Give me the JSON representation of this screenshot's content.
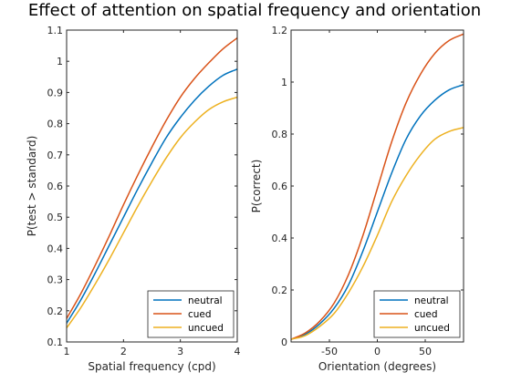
{
  "figure_title": "Effect of attention on spatial frequency and orientation",
  "colors": {
    "neutral": "#0072BD",
    "cued": "#D95319",
    "uncued": "#EDB120"
  },
  "chart_data": [
    {
      "type": "line",
      "xlabel": "Spatial frequency (cpd)",
      "ylabel": "P(test > standard)",
      "xlim": [
        1,
        4
      ],
      "ylim": [
        0.1,
        1.1
      ],
      "xticks": [
        1,
        2,
        3,
        4
      ],
      "yticks": [
        0.1,
        0.2,
        0.3,
        0.4,
        0.5,
        0.6,
        0.7,
        0.8,
        0.9,
        1,
        1.1
      ],
      "legend_position": "bottom-right",
      "grid": false,
      "x": [
        1.0,
        1.25,
        1.5,
        1.75,
        2.0,
        2.25,
        2.5,
        2.75,
        3.0,
        3.25,
        3.5,
        3.75,
        4.0
      ],
      "series": [
        {
          "name": "neutral",
          "values": [
            0.16,
            0.235,
            0.32,
            0.41,
            0.5,
            0.59,
            0.675,
            0.755,
            0.82,
            0.875,
            0.92,
            0.955,
            0.975
          ]
        },
        {
          "name": "cued",
          "values": [
            0.175,
            0.255,
            0.345,
            0.44,
            0.54,
            0.635,
            0.725,
            0.81,
            0.885,
            0.945,
            0.995,
            1.04,
            1.075
          ]
        },
        {
          "name": "uncued",
          "values": [
            0.145,
            0.21,
            0.285,
            0.365,
            0.45,
            0.535,
            0.615,
            0.69,
            0.755,
            0.805,
            0.845,
            0.87,
            0.885
          ]
        }
      ]
    },
    {
      "type": "line",
      "xlabel": "Orientation (degrees)",
      "ylabel": "P(correct)",
      "xlim": [
        -90,
        90
      ],
      "ylim": [
        0,
        1.2
      ],
      "xticks": [
        -50,
        0,
        50
      ],
      "yticks": [
        0,
        0.2,
        0.4,
        0.6,
        0.8,
        1,
        1.2
      ],
      "legend_position": "bottom-right",
      "grid": false,
      "x": [
        -90,
        -75,
        -60,
        -45,
        -30,
        -15,
        0,
        15,
        30,
        45,
        60,
        75,
        90
      ],
      "series": [
        {
          "name": "neutral",
          "values": [
            0.01,
            0.03,
            0.07,
            0.13,
            0.22,
            0.35,
            0.5,
            0.65,
            0.78,
            0.87,
            0.93,
            0.97,
            0.99
          ]
        },
        {
          "name": "cued",
          "values": [
            0.01,
            0.035,
            0.08,
            0.15,
            0.26,
            0.41,
            0.59,
            0.77,
            0.92,
            1.03,
            1.11,
            1.16,
            1.185
          ]
        },
        {
          "name": "uncued",
          "values": [
            0.01,
            0.025,
            0.06,
            0.11,
            0.19,
            0.29,
            0.41,
            0.54,
            0.64,
            0.72,
            0.78,
            0.81,
            0.825
          ]
        }
      ]
    }
  ]
}
